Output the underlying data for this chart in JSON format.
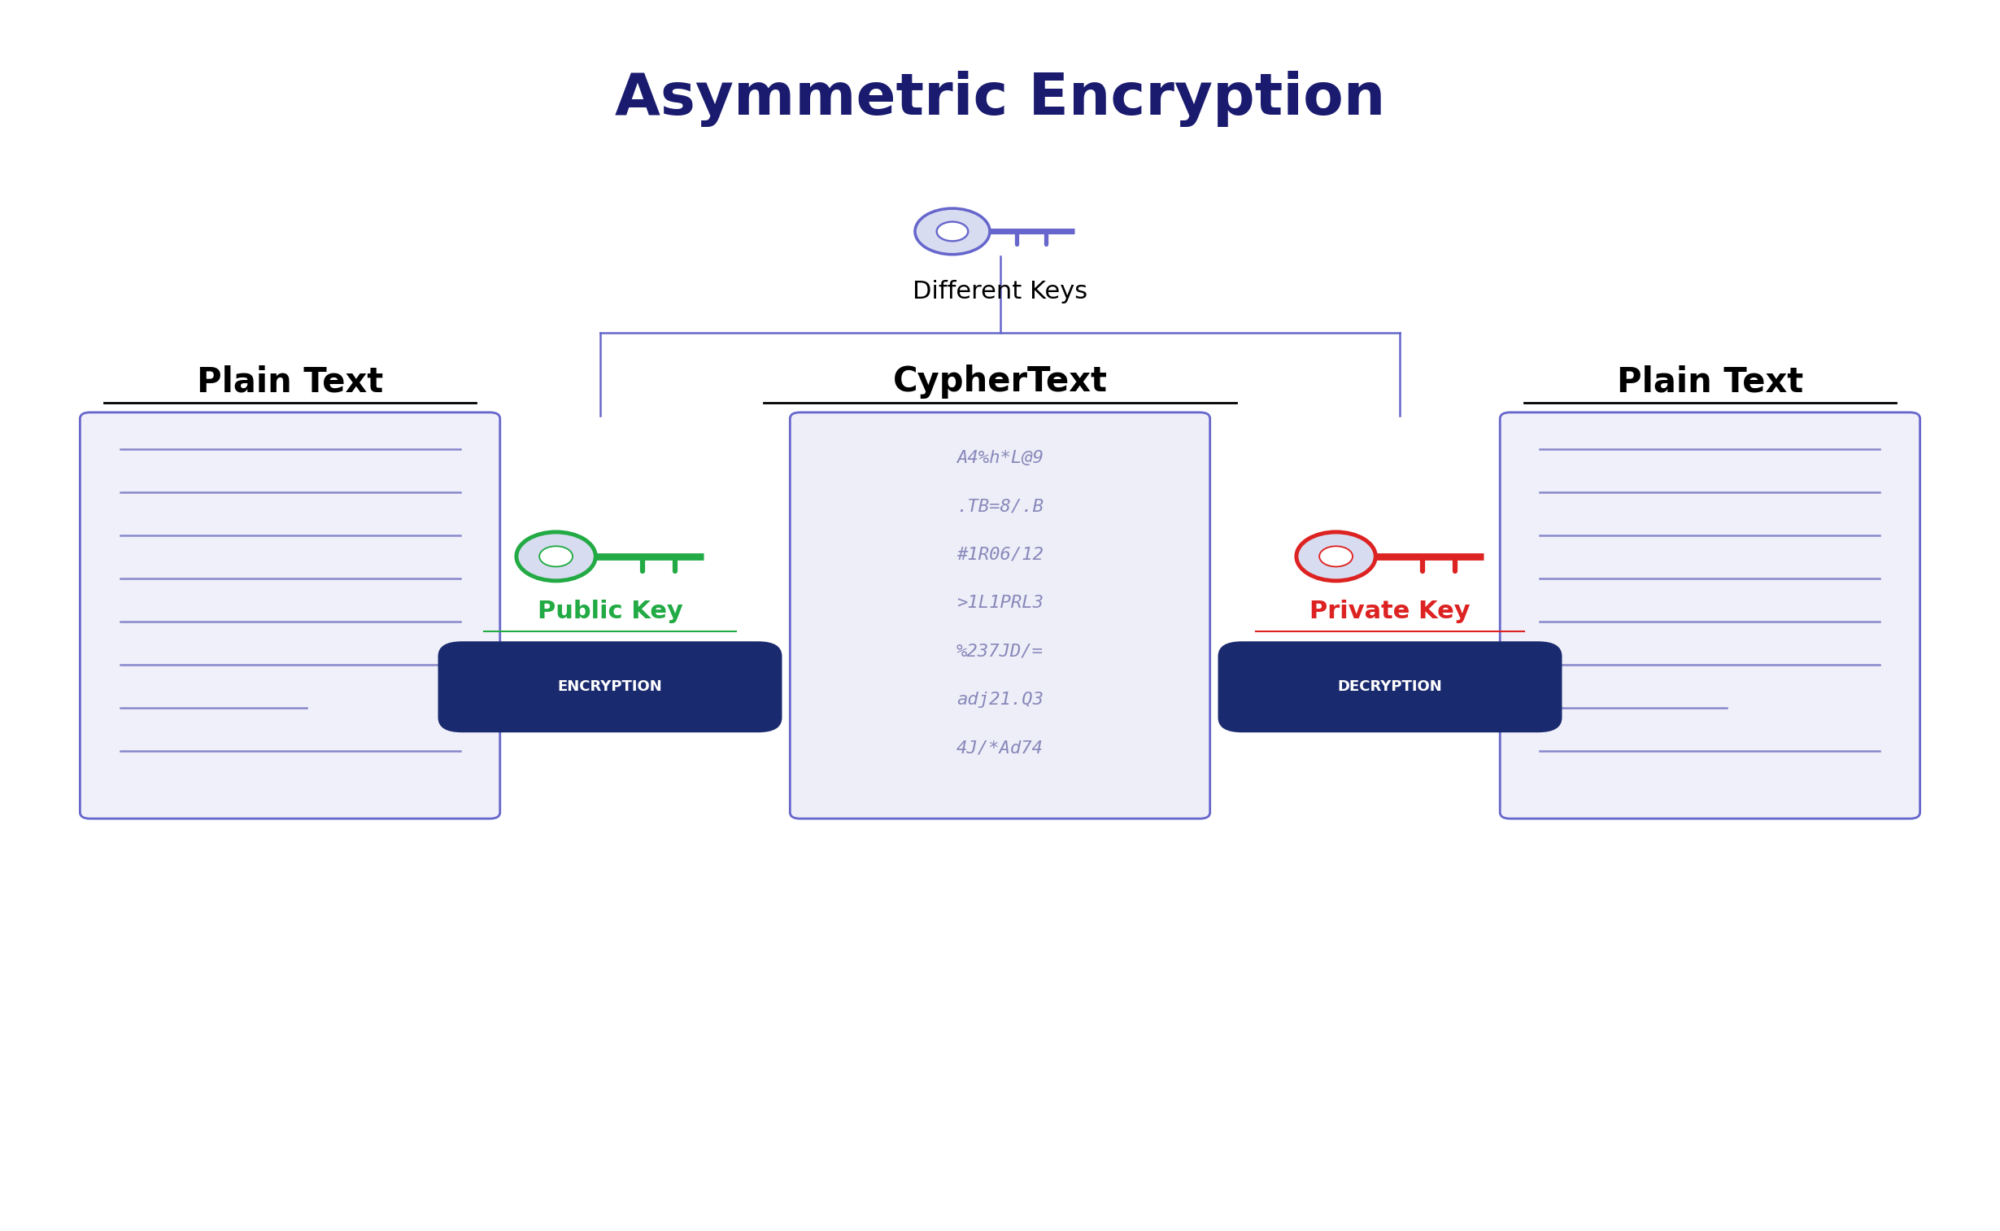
{
  "title": "Asymmetric Encryption",
  "title_color": "#1a1a6e",
  "title_fontsize": 52,
  "bg_color": "#ffffff",
  "left_label": "Plain Text",
  "center_label": "CypherText",
  "right_label": "Plain Text",
  "different_keys_label": "Different Keys",
  "public_key_label": "Public Key",
  "private_key_label": "Private Key",
  "encryption_label": "ENCRYPTION",
  "decryption_label": "DECRYPTION",
  "cipher_text_lines": [
    "A4%h*L@9",
    ".TB=8/.B",
    "#1R06/12",
    ">1L1PRL3",
    "%237JD/=",
    "adj21.Q3",
    "4J/*Ad74"
  ],
  "box_fill_color": "#f0f0fa",
  "box_edge_color": "#6666cc",
  "cipher_fill_color": "#eeeef8",
  "cipher_text_color": "#8888bb",
  "doc_line_color": "#8888cc",
  "button_color": "#1a2a6e",
  "button_text_color": "#ffffff",
  "public_key_color": "#22aa44",
  "private_key_color": "#dd2222",
  "key_body_fill": "#d8dcf0",
  "connector_color": "#6666cc",
  "label_fontsize": 22,
  "section_label_fontsize": 30
}
